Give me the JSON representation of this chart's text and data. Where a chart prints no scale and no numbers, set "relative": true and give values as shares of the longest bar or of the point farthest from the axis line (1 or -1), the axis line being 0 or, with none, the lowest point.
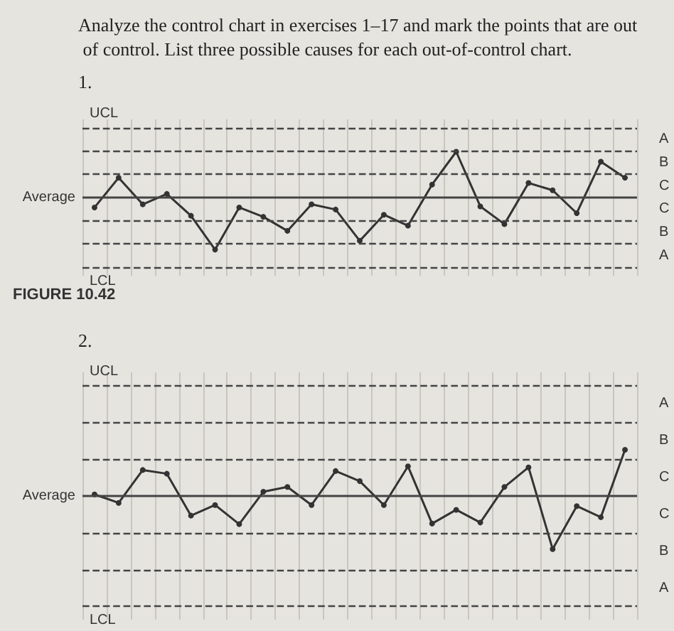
{
  "chart_data": [
    {
      "type": "line",
      "title": "Analyze the control chart in exercises 1–17 and mark the points that are out of control. List three possible causes for each out-of-control chart.",
      "subtitle": "1.",
      "relative": true,
      "grid": "x",
      "marker": "circle",
      "line_style": "solid",
      "categories": [
        null,
        null,
        null,
        null,
        null,
        null,
        null,
        null,
        null,
        null,
        null,
        null,
        null,
        null,
        null,
        null,
        null,
        null,
        null,
        null,
        null,
        null,
        null
      ],
      "series": [
        {
          "color": "#333333",
          "values": [
            -0.19,
            0.38,
            -0.13,
            0.07,
            -0.35,
            -1,
            -0.19,
            -0.37,
            -0.64,
            -0.13,
            -0.23,
            -0.83,
            -0.33,
            -0.54,
            0.25,
            0.88,
            -0.17,
            -0.51,
            0.28,
            0.14,
            -0.3,
            0.69,
            0.38
          ]
        }
      ],
      "ref_lines": [
        {
          "axis": "y",
          "value": 1.34,
          "label": "UCL",
          "line_style": "dashed"
        },
        {
          "axis": "y",
          "value": 0.89,
          "line_style": "dashed"
        },
        {
          "axis": "y",
          "value": 0.45,
          "line_style": "dashed"
        },
        {
          "axis": "y",
          "value": 0,
          "label": "Average",
          "line_style": "solid"
        },
        {
          "axis": "y",
          "value": -0.45,
          "line_style": "dashed"
        },
        {
          "axis": "y",
          "value": -0.89,
          "line_style": "dashed"
        },
        {
          "axis": "y",
          "value": -1.34,
          "label": "LCL",
          "line_style": "dashed"
        }
      ],
      "annotations": [
        "A",
        "B",
        "C",
        "C",
        "B",
        "A",
        "FIGURE 10.42"
      ]
    },
    {
      "type": "line",
      "title": "2.",
      "relative": true,
      "grid": "x",
      "marker": "circle",
      "line_style": "solid",
      "categories": [
        null,
        null,
        null,
        null,
        null,
        null,
        null,
        null,
        null,
        null,
        null,
        null,
        null,
        null,
        null,
        null,
        null,
        null,
        null,
        null,
        null,
        null,
        null
      ],
      "series": [
        {
          "color": "#333333",
          "values": [
            0.03,
            -0.13,
            0.49,
            0.42,
            -0.37,
            -0.17,
            -0.53,
            0.08,
            0.17,
            -0.17,
            0.47,
            0.28,
            -0.17,
            0.56,
            -0.52,
            -0.26,
            -0.5,
            0.17,
            0.54,
            -1,
            -0.19,
            -0.4,
            0.87
          ]
        }
      ],
      "ref_lines": [
        {
          "axis": "y",
          "value": 2.08,
          "label": "UCL",
          "line_style": "dashed"
        },
        {
          "axis": "y",
          "value": 1.39,
          "line_style": "dashed"
        },
        {
          "axis": "y",
          "value": 0.69,
          "line_style": "dashed"
        },
        {
          "axis": "y",
          "value": 0,
          "label": "Average",
          "line_style": "solid"
        },
        {
          "axis": "y",
          "value": -0.69,
          "line_style": "dashed"
        },
        {
          "axis": "y",
          "value": -1.39,
          "line_style": "dashed"
        },
        {
          "axis": "y",
          "value": -2.08,
          "label": "LCL",
          "line_style": "dashed"
        }
      ],
      "annotations": [
        "A",
        "B",
        "C",
        "C",
        "B",
        "A"
      ]
    }
  ]
}
